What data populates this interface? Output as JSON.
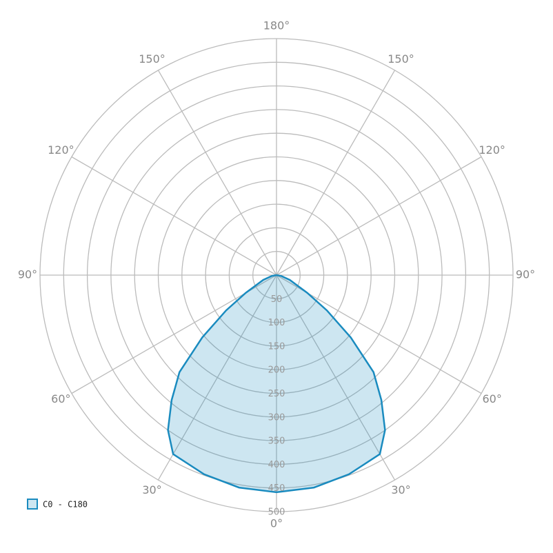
{
  "chart_data": {
    "type": "polar",
    "angle_ticks": [
      {
        "value": 0,
        "label": "0°"
      },
      {
        "value": 30,
        "label": "30°"
      },
      {
        "value": 60,
        "label": "60°"
      },
      {
        "value": 90,
        "label": "90°"
      },
      {
        "value": 120,
        "label": "120°"
      },
      {
        "value": 150,
        "label": "150°"
      },
      {
        "value": 180,
        "label": "180°"
      },
      {
        "value": -150,
        "label": "150°"
      },
      {
        "value": -120,
        "label": "120°"
      },
      {
        "value": -90,
        "label": "90°"
      },
      {
        "value": -60,
        "label": "60°"
      },
      {
        "value": -30,
        "label": "30°"
      }
    ],
    "rlim": [
      0,
      500
    ],
    "rticks": [
      50,
      100,
      150,
      200,
      250,
      300,
      350,
      400,
      450,
      500
    ],
    "series": [
      {
        "name": "C0 - C180",
        "color": "#1a8bbf",
        "x": [
          -90,
          -80,
          -70,
          -60,
          -55,
          -50,
          -45,
          -40,
          -35,
          -30,
          -20,
          -10,
          0,
          10,
          20,
          30,
          35,
          40,
          45,
          50,
          55,
          60,
          70,
          80,
          90
        ],
        "values": [
          0,
          10,
          30,
          75,
          130,
          205,
          290,
          345,
          400,
          437,
          448,
          456,
          459,
          456,
          448,
          437,
          400,
          345,
          290,
          205,
          130,
          75,
          30,
          10,
          0
        ]
      }
    ]
  }
}
